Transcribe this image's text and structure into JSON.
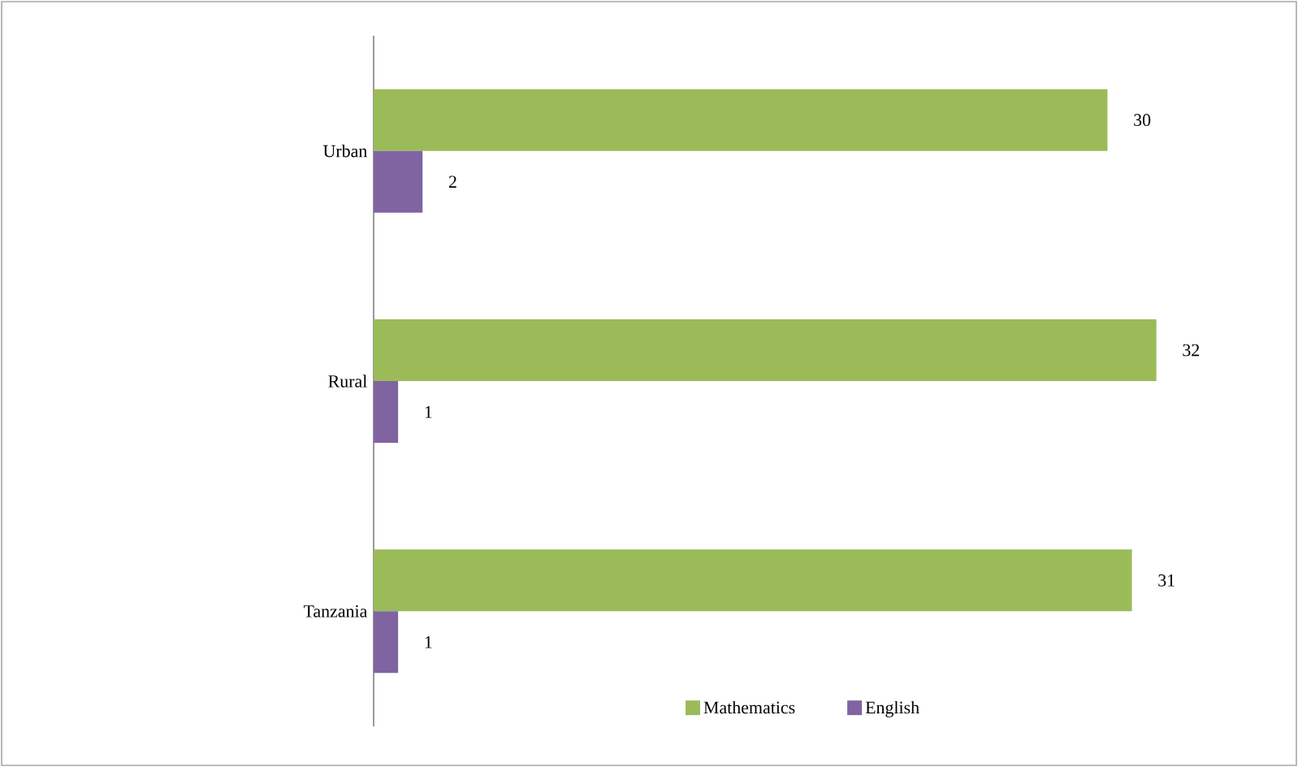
{
  "chart_data": {
    "type": "bar",
    "orientation": "horizontal",
    "categories": [
      "Urban",
      "Rural",
      "Tanzania"
    ],
    "series": [
      {
        "name": "Mathematics",
        "color": "#9bbb59",
        "values": [
          30,
          32,
          31
        ]
      },
      {
        "name": "English",
        "color": "#8064a2",
        "values": [
          2,
          1,
          1
        ]
      }
    ],
    "data_labels": true,
    "legend": "bottom",
    "grid": false
  }
}
